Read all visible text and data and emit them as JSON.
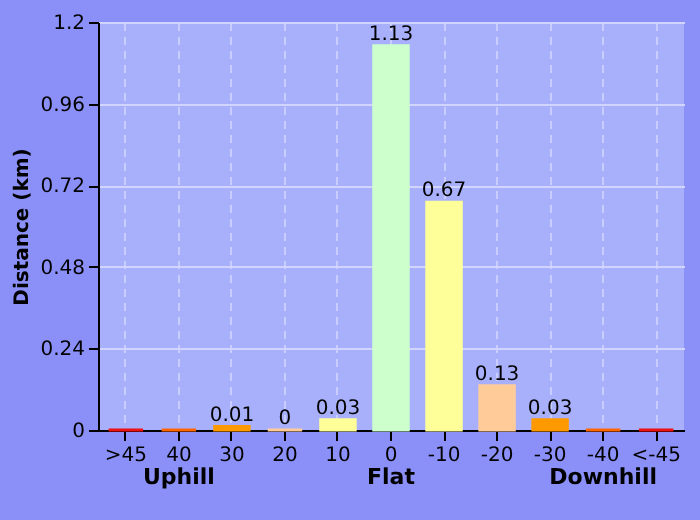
{
  "chart_data": {
    "type": "bar",
    "ylabel": "Distance (km)",
    "categories": [
      ">45",
      "40",
      "30",
      "20",
      "10",
      "0",
      "-10",
      "-20",
      "-30",
      "-40",
      "<-45"
    ],
    "values": [
      0,
      0,
      0.01,
      0,
      0.03,
      1.13,
      0.67,
      0.13,
      0.03,
      0,
      0
    ],
    "value_labels": [
      null,
      null,
      "0.01",
      "0",
      "0.03",
      "1.13",
      "0.67",
      "0.13",
      "0.03",
      null,
      null
    ],
    "colors": [
      "#ee1111",
      "#ff6600",
      "#ff9900",
      "#ffcc99",
      "#ffff99",
      "#ccffcc",
      "#ffff99",
      "#ffcc99",
      "#ff9900",
      "#ff6600",
      "#ee1111"
    ],
    "ylim": [
      0,
      1.2
    ],
    "yticks": [
      0,
      0.24,
      0.48,
      0.72,
      0.96,
      1.2
    ],
    "grid": true,
    "annotations": [
      "Uphill",
      "Flat",
      "Downhill"
    ]
  }
}
